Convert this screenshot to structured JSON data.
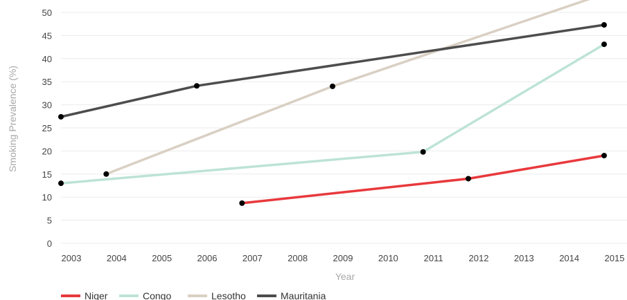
{
  "chart_data": {
    "type": "line",
    "xlabel": "Year",
    "ylabel": "Smoking Prevalence (%)",
    "xlim": [
      2003,
      2015
    ],
    "ylim": [
      0,
      50
    ],
    "x_ticks": [
      "2003",
      "2004",
      "2005",
      "2006",
      "2007",
      "2008",
      "2009",
      "2010",
      "2011",
      "2012",
      "2013",
      "2014",
      "2015"
    ],
    "y_ticks": [
      "0",
      "5",
      "10",
      "15",
      "20",
      "25",
      "30",
      "35",
      "40",
      "45",
      "50"
    ],
    "grid": "horizontal",
    "legend_position": "bottom-left",
    "series": [
      {
        "name": "Niger",
        "color": "#e8393d",
        "points": [
          [
            2007,
            8.7
          ],
          [
            2012,
            14.0
          ],
          [
            2015,
            19.0
          ]
        ]
      },
      {
        "name": "Congo",
        "color": "#bde3d6",
        "points": [
          [
            2003,
            13.0
          ],
          [
            2011,
            19.8
          ],
          [
            2015,
            43.1
          ]
        ]
      },
      {
        "name": "Lesotho",
        "color": "#d9d0c3",
        "points": [
          [
            2004,
            15.0
          ],
          [
            2009,
            34.0
          ],
          [
            2015,
            54.0
          ]
        ]
      },
      {
        "name": "Mauritania",
        "color": "#4d4d4d",
        "points": [
          [
            2003,
            27.4
          ],
          [
            2006,
            34.1
          ],
          [
            2015,
            47.3
          ]
        ]
      }
    ]
  }
}
